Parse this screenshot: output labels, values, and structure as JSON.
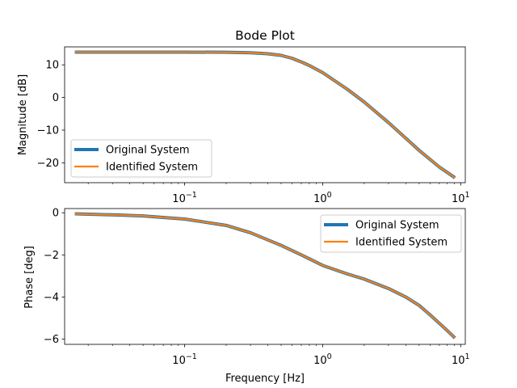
{
  "chart_data": [
    {
      "type": "line",
      "title": "Bode Plot",
      "xlabel": "",
      "ylabel": "Magnitude [dB]",
      "xscale": "log",
      "xlim": [
        0.0135,
        10.8
      ],
      "ylim": [
        -26.1,
        15.5
      ],
      "xticks": [
        {
          "value": 0.1,
          "base": "10",
          "exp": "−1"
        },
        {
          "value": 1,
          "base": "10",
          "exp": "0"
        },
        {
          "value": 10,
          "base": "10",
          "exp": "1"
        }
      ],
      "yticks": [
        {
          "value": 10,
          "label": "10"
        },
        {
          "value": 0,
          "label": "0"
        },
        {
          "value": -10,
          "label": "−10"
        },
        {
          "value": -20,
          "label": "−20"
        }
      ],
      "legend_position": "lower-left",
      "grid": false,
      "series": [
        {
          "name": "Original System",
          "color": "#1f77b4",
          "x": [
            0.016,
            0.05,
            0.1,
            0.2,
            0.3,
            0.4,
            0.5,
            0.6,
            0.7,
            0.8,
            1.0,
            1.5,
            2.0,
            3.0,
            5.0,
            7.0,
            9.1
          ],
          "y": [
            13.9,
            13.9,
            13.9,
            13.85,
            13.7,
            13.4,
            12.9,
            12.0,
            10.9,
            9.8,
            7.6,
            2.6,
            -1.4,
            -7.7,
            -16.2,
            -21.3,
            -24.6
          ]
        },
        {
          "name": "Identified System",
          "color": "#ff7f0e",
          "x": [
            0.016,
            0.05,
            0.1,
            0.2,
            0.3,
            0.4,
            0.5,
            0.6,
            0.7,
            0.8,
            1.0,
            1.5,
            2.0,
            3.0,
            5.0,
            7.0,
            9.1
          ],
          "y": [
            13.9,
            13.9,
            13.9,
            13.85,
            13.7,
            13.4,
            12.9,
            12.0,
            10.9,
            9.8,
            7.6,
            2.6,
            -1.4,
            -7.7,
            -16.2,
            -21.3,
            -24.6
          ]
        }
      ]
    },
    {
      "type": "line",
      "title": "",
      "xlabel": "Frequency [Hz]",
      "ylabel": "Phase [deg]",
      "xscale": "log",
      "xlim": [
        0.0135,
        10.8
      ],
      "ylim": [
        -6.25,
        0.2
      ],
      "xticks": [
        {
          "value": 0.1,
          "base": "10",
          "exp": "−1"
        },
        {
          "value": 1,
          "base": "10",
          "exp": "0"
        },
        {
          "value": 10,
          "base": "10",
          "exp": "1"
        }
      ],
      "yticks": [
        {
          "value": 0,
          "label": "0"
        },
        {
          "value": -2,
          "label": "−2"
        },
        {
          "value": -4,
          "label": "−4"
        },
        {
          "value": -6,
          "label": "−6"
        }
      ],
      "legend_position": "upper-right",
      "grid": false,
      "series": [
        {
          "name": "Original System",
          "color": "#1f77b4",
          "x": [
            0.016,
            0.03,
            0.05,
            0.1,
            0.2,
            0.3,
            0.5,
            0.7,
            1.0,
            1.5,
            2.0,
            3.0,
            4.0,
            5.0,
            6.0,
            7.0,
            8.0,
            9.1
          ],
          "y": [
            -0.05,
            -0.1,
            -0.15,
            -0.3,
            -0.6,
            -0.95,
            -1.55,
            -2.0,
            -2.5,
            -2.9,
            -3.15,
            -3.6,
            -4.0,
            -4.4,
            -4.85,
            -5.25,
            -5.6,
            -5.95
          ]
        },
        {
          "name": "Identified System",
          "color": "#ff7f0e",
          "x": [
            0.016,
            0.03,
            0.05,
            0.1,
            0.2,
            0.3,
            0.5,
            0.7,
            1.0,
            1.5,
            2.0,
            3.0,
            4.0,
            5.0,
            6.0,
            7.0,
            8.0,
            9.1
          ],
          "y": [
            -0.05,
            -0.1,
            -0.15,
            -0.3,
            -0.6,
            -0.95,
            -1.55,
            -2.0,
            -2.5,
            -2.9,
            -3.15,
            -3.6,
            -4.0,
            -4.4,
            -4.85,
            -5.25,
            -5.6,
            -5.95
          ]
        }
      ]
    }
  ]
}
